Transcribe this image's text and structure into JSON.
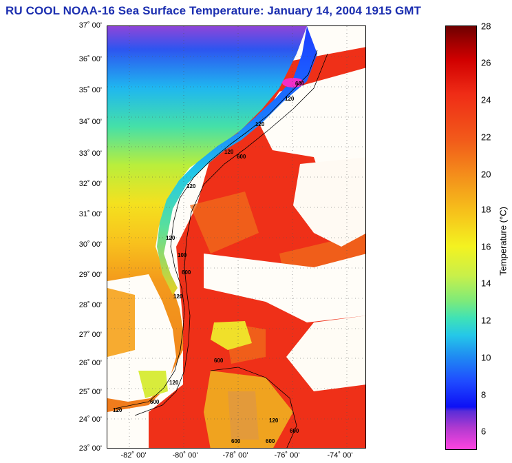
{
  "title": "RU COOL  NOAA-16  Sea Surface Temperature:  January 14, 2004 1915 GMT",
  "map": {
    "lat_labels": [
      "37˚ 00'",
      "36˚ 00'",
      "35˚ 00'",
      "34˚ 00'",
      "33˚ 00'",
      "32˚ 00'",
      "31˚ 00'",
      "30˚ 00'",
      "29˚ 00'",
      "28˚ 00'",
      "27˚ 00'",
      "26˚ 00'",
      "25˚ 00'",
      "24˚ 00'",
      "23˚ 00'"
    ],
    "lon_labels": [
      "-82˚ 00'",
      "-80˚ 00'",
      "-78˚ 00'",
      "-76˚ 00'",
      "-74˚ 00'"
    ],
    "contour_labels": [
      "600",
      "120",
      "120",
      "120",
      "600",
      "120",
      "120",
      "100",
      "600",
      "120",
      "120",
      "120",
      "600",
      "600",
      "600",
      "600",
      "120",
      "600"
    ]
  },
  "colorbar": {
    "label": "Temperature (°C)",
    "ticks": [
      "28",
      "26",
      "24",
      "22",
      "20",
      "18",
      "16",
      "14",
      "12",
      "10",
      "8",
      "6"
    ]
  },
  "colors": {
    "title": "#1c2fb0",
    "land": "#ffffff",
    "cloud": "#fffdf8",
    "warm": "#ef2c16",
    "cold": "#1a4bff"
  }
}
